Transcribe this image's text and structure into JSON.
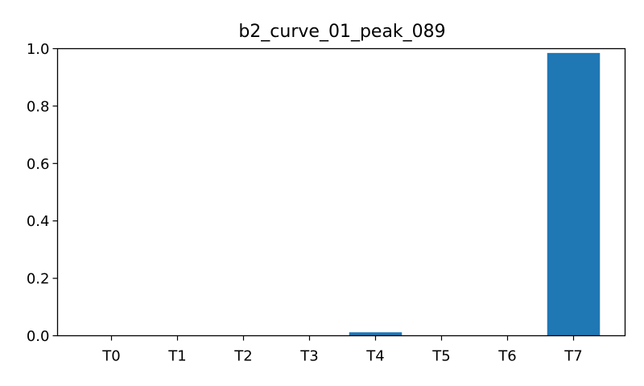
{
  "chart_data": {
    "type": "bar",
    "title": "b2_curve_01_peak_089",
    "xlabel": "",
    "ylabel": "",
    "categories": [
      "T0",
      "T1",
      "T2",
      "T3",
      "T4",
      "T5",
      "T6",
      "T7"
    ],
    "values": [
      0.0,
      0.0,
      0.0,
      0.0,
      0.012,
      0.0,
      0.0,
      0.985
    ],
    "ylim": [
      0,
      1.0
    ],
    "yticks": [
      "0.0",
      "0.2",
      "0.4",
      "0.6",
      "0.8",
      "1.0"
    ],
    "grid": false,
    "legend": "none",
    "bar_color": "#1f77b4"
  }
}
